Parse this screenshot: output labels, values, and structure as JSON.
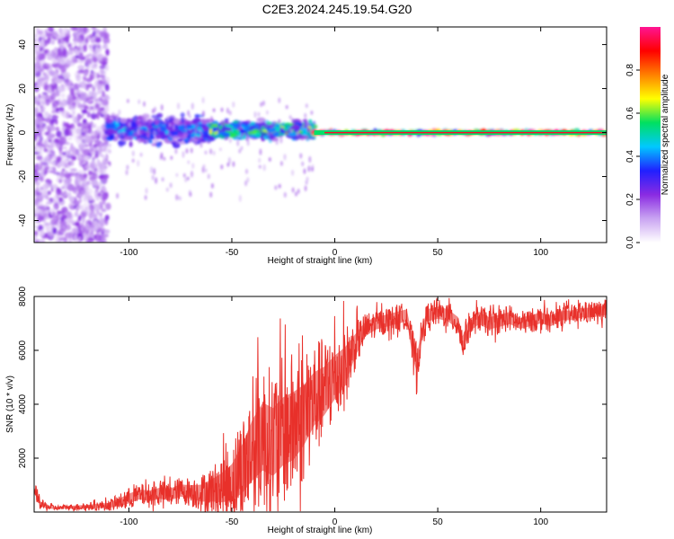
{
  "figure": {
    "title": "C2E3.2024.245.19.54.G20"
  },
  "chart_data": [
    {
      "type": "heatmap",
      "title": "C2E3.2024.245.19.54.G20",
      "xlabel": "Height of straight line (km)",
      "ylabel": "Frequency (Hz)",
      "xlim": [
        -146,
        132
      ],
      "ylim": [
        -50,
        48
      ],
      "xticks": [
        -100,
        -50,
        0,
        50,
        100
      ],
      "yticks": [
        -40,
        -20,
        0,
        20,
        40
      ],
      "xtick_labels": [
        "-100",
        "-50",
        "0",
        "50",
        "100"
      ],
      "ytick_labels": [
        "-40",
        "-20",
        "0",
        "20",
        "40"
      ],
      "colorbar": {
        "label": "Normalized spectral amplitude",
        "range": [
          0,
          1
        ],
        "ticks": [
          0.0,
          0.2,
          0.4,
          0.6,
          0.8
        ],
        "tick_labels": [
          "0.0",
          "0.2",
          "0.4",
          "0.6",
          "0.8"
        ],
        "colors": [
          "#ffffff",
          "#c9a4f2",
          "#8a2be2",
          "#2020ff",
          "#00c8ff",
          "#00e060",
          "#ffff00",
          "#ff8000",
          "#ff0000",
          "#ff1493"
        ]
      },
      "features": [
        {
          "x_range": [
            -146,
            -110
          ],
          "freq_range": [
            -50,
            48
          ],
          "amplitude": 0.15
        },
        {
          "x_range": [
            -110,
            -60
          ],
          "freq_center": 1,
          "freq_halfwidth": 8,
          "amplitude": 0.4
        },
        {
          "x_range": [
            -60,
            -10
          ],
          "freq_center": 1,
          "freq_halfwidth": 5,
          "amplitude": 0.55
        },
        {
          "x_range": [
            -10,
            132
          ],
          "freq_center": 0,
          "freq_halfwidth": 1.5,
          "amplitude": 0.9
        }
      ],
      "grid": false
    },
    {
      "type": "line",
      "xlabel": "Height of straight line (km)",
      "ylabel": "SNR (10 * v/v)",
      "xlim": [
        -146,
        132
      ],
      "ylim": [
        0,
        8000
      ],
      "xticks": [
        -100,
        -50,
        0,
        50,
        100
      ],
      "yticks": [
        2000,
        4000,
        6000,
        8000
      ],
      "xtick_labels": [
        "-100",
        "-50",
        "0",
        "50",
        "100"
      ],
      "ytick_labels": [
        "2000",
        "4000",
        "6000",
        "8000"
      ],
      "color": "#e8302a",
      "series": [
        {
          "x": [
            -146,
            -145,
            -143,
            -140,
            -135,
            -130,
            -120,
            -110,
            -105,
            -100,
            -95,
            -90,
            -85,
            -80,
            -75,
            -70,
            -65,
            -60,
            -55,
            -50,
            -45,
            -40,
            -35,
            -30,
            -25,
            -20,
            -15,
            -10,
            -5,
            0,
            5,
            10,
            15,
            20,
            25,
            30,
            35,
            38,
            40,
            42,
            45,
            50,
            55,
            60,
            62,
            65,
            70,
            75,
            80,
            85,
            90,
            95,
            100,
            105,
            110,
            115,
            120,
            125,
            132
          ],
          "y": [
            800,
            700,
            300,
            200,
            150,
            180,
            200,
            250,
            350,
            500,
            650,
            600,
            700,
            650,
            800,
            750,
            700,
            800,
            900,
            1100,
            1600,
            2300,
            2800,
            2600,
            3000,
            3200,
            3600,
            4200,
            4500,
            5000,
            5400,
            6200,
            6800,
            7000,
            7100,
            7200,
            7300,
            6000,
            5500,
            6500,
            7300,
            7400,
            7300,
            7000,
            6200,
            6900,
            7200,
            7000,
            7100,
            7200,
            7000,
            7100,
            7200,
            7100,
            7300,
            7300,
            7400,
            7400,
            7500
          ],
          "envelope": [
            200,
            300,
            200,
            150,
            100,
            100,
            150,
            200,
            300,
            400,
            400,
            450,
            450,
            500,
            500,
            550,
            700,
            900,
            1200,
            1500,
            2000,
            2500,
            2800,
            2800,
            2800,
            2800,
            2500,
            2200,
            2000,
            1800,
            1600,
            900,
            600,
            500,
            500,
            500,
            500,
            700,
            800,
            600,
            500,
            500,
            500,
            500,
            700,
            500,
            500,
            500,
            500,
            500,
            450,
            450,
            450,
            450,
            400,
            400,
            400,
            400,
            400
          ]
        }
      ],
      "grid": false
    }
  ]
}
